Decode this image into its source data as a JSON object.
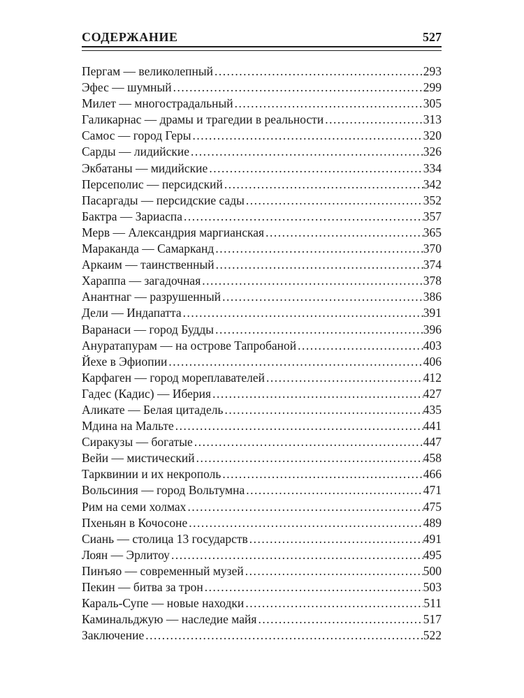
{
  "header": {
    "title": "СОДЕРЖАНИЕ",
    "page_number": "527"
  },
  "toc": {
    "entries": [
      {
        "title": "Пергам — великолепный",
        "page": "293"
      },
      {
        "title": "Эфес — шумный",
        "page": "299"
      },
      {
        "title": "Милет — многострадальный",
        "page": "305"
      },
      {
        "title": "Галикарнас — драмы и трагедии в реальности",
        "page": "313"
      },
      {
        "title": "Самос — город Геры",
        "page": "320"
      },
      {
        "title": "Сарды — лидийские",
        "page": "326"
      },
      {
        "title": "Экбатаны — мидийские",
        "page": "334"
      },
      {
        "title": "Персеполис — персидский",
        "page": "342"
      },
      {
        "title": "Пасаргады — персидские сады",
        "page": "352"
      },
      {
        "title": "Бактра — Зариаспа",
        "page": "357"
      },
      {
        "title": "Мерв — Александрия маргианская",
        "page": "365"
      },
      {
        "title": "Мараканда — Самарканд",
        "page": "370"
      },
      {
        "title": "Аркаим — таинственный",
        "page": "374"
      },
      {
        "title": "Хараппа — загадочная",
        "page": "378"
      },
      {
        "title": "Анантнаг — разрушенный",
        "page": "386"
      },
      {
        "title": "Дели — Индапатта",
        "page": "391"
      },
      {
        "title": "Варанаси — город Будды",
        "page": "396"
      },
      {
        "title": "Ануратапурам — на острове Тапробаной",
        "page": "403"
      },
      {
        "title": "Йехе в Эфиопии",
        "page": "406"
      },
      {
        "title": "Карфаген — город мореплавателей",
        "page": "412"
      },
      {
        "title": "Гадес (Кадис) — Иберия",
        "page": "427"
      },
      {
        "title": "Аликате — Белая цитадель",
        "page": "435"
      },
      {
        "title": "Мдина на Мальте",
        "page": "441"
      },
      {
        "title": "Сиракузы — богатые",
        "page": "447"
      },
      {
        "title": "Вейи — мистический",
        "page": "458"
      },
      {
        "title": "Тарквинии и их некрополь",
        "page": "466"
      },
      {
        "title": "Вольсиния — город Вольтумна",
        "page": "471"
      },
      {
        "title": "Рим на семи холмах",
        "page": "475"
      },
      {
        "title": "Пхеньян в Кочосоне",
        "page": "489"
      },
      {
        "title": "Сиань — столица 13 государств",
        "page": "491"
      },
      {
        "title": "Лоян — Эрлитоу",
        "page": "495"
      },
      {
        "title": "Пинъяо — современный музей",
        "page": "500"
      },
      {
        "title": "Пекин — битва за трон",
        "page": "503"
      },
      {
        "title": "Караль-Супе — новые находки",
        "page": "511"
      },
      {
        "title": "Каминальджую — наследие майя",
        "page": "517"
      },
      {
        "title": "Заключение",
        "page": "522"
      }
    ]
  }
}
